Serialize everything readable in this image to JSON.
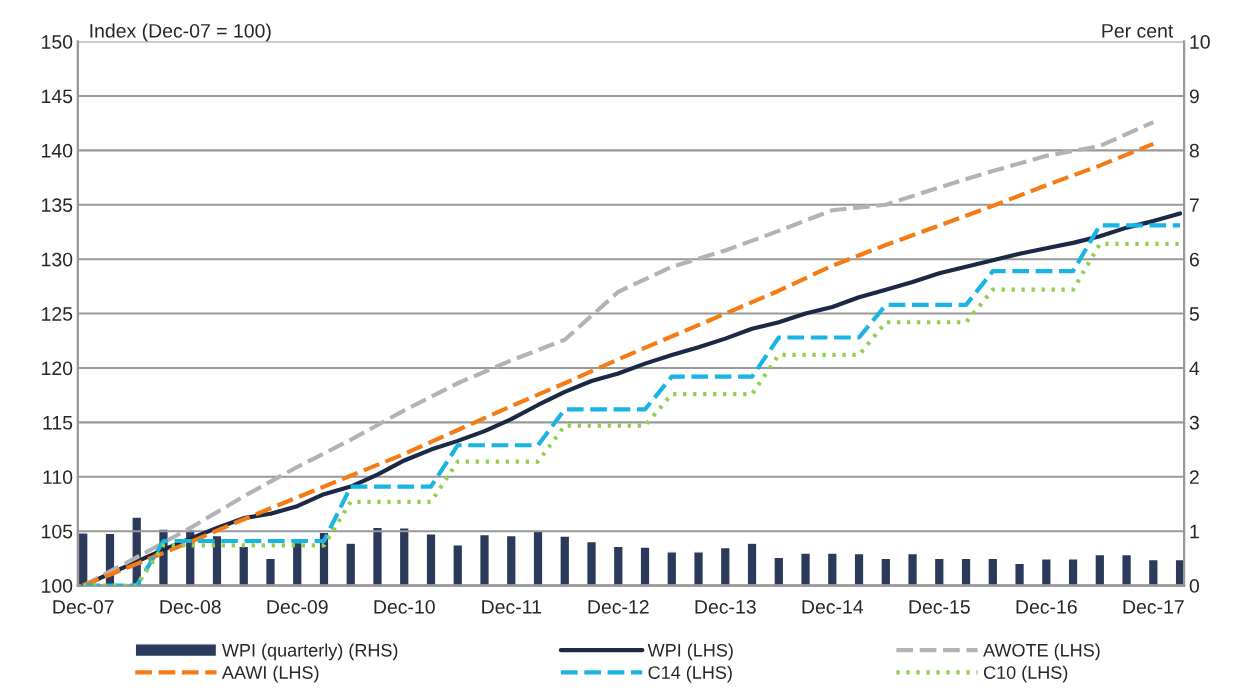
{
  "chart_data": {
    "type": "line",
    "ylabel": "Index (Dec-07 = 100)",
    "y2label": "Per cent",
    "categories": [
      "Dec-07",
      null,
      null,
      null,
      "Dec-08",
      null,
      null,
      null,
      "Dec-09",
      null,
      null,
      null,
      "Dec-10",
      null,
      null,
      null,
      "Dec-11",
      null,
      null,
      null,
      "Dec-12",
      null,
      null,
      null,
      "Dec-13",
      null,
      null,
      null,
      "Dec-14",
      null,
      null,
      null,
      "Dec-15",
      null,
      null,
      null,
      "Dec-16",
      null,
      null,
      null,
      "Dec-17",
      null
    ],
    "ylim": [
      100,
      150
    ],
    "yticks": [
      100,
      105,
      110,
      115,
      120,
      125,
      130,
      135,
      140,
      145,
      150
    ],
    "y2lim": [
      0,
      10
    ],
    "y2ticks": [
      0,
      1,
      2,
      3,
      4,
      5,
      6,
      7,
      8,
      9,
      10
    ],
    "grid": "y",
    "legend": "bottom",
    "series": [
      {
        "name": "WPI (quarterly) (RHS)",
        "type": "bar",
        "axis": "y2",
        "color": "#2b3a5a",
        "values": [
          0.97,
          0.96,
          1.26,
          1.04,
          1.03,
          0.92,
          0.72,
          0.5,
          0.79,
          0.98,
          0.78,
          1.07,
          1.06,
          0.95,
          0.75,
          0.94,
          0.92,
          1.01,
          0.91,
          0.81,
          0.72,
          0.71,
          0.62,
          0.62,
          0.7,
          0.78,
          0.52,
          0.6,
          0.6,
          0.59,
          0.5,
          0.59,
          0.5,
          0.5,
          0.5,
          0.41,
          0.49,
          0.49,
          0.57,
          0.57,
          0.48,
          0.48
        ]
      },
      {
        "name": "WPI (LHS)",
        "line_style": "solid",
        "color": "#1b2945",
        "values": [
          100,
          101.1,
          102.2,
          103.3,
          104.3,
          105.3,
          106.2,
          106.6,
          107.3,
          108.4,
          109.1,
          110.2,
          111.5,
          112.5,
          113.3,
          114.2,
          115.3,
          116.6,
          117.8,
          118.8,
          119.5,
          120.4,
          121.2,
          121.9,
          122.7,
          123.6,
          124.2,
          125.0,
          125.6,
          126.5,
          127.2,
          127.9,
          128.7,
          129.3,
          129.9,
          130.5,
          131.0,
          131.5,
          132.1,
          132.9,
          133.5,
          134.2
        ]
      },
      {
        "name": "AWOTE (LHS)",
        "line_style": "dashed",
        "color": "#b3b3b3",
        "values": [
          100,
          null,
          102.6,
          null,
          105.3,
          null,
          108.2,
          null,
          110.9,
          null,
          113.4,
          null,
          116.1,
          null,
          118.6,
          null,
          120.7,
          null,
          122.6,
          null,
          127.0,
          null,
          129.3,
          null,
          130.8,
          null,
          132.6,
          null,
          134.5,
          null,
          135.0,
          null,
          136.6,
          null,
          138.1,
          null,
          139.5,
          null,
          140.4,
          null,
          142.6,
          null
        ]
      },
      {
        "name": "AAWI (LHS)",
        "line_style": "dashed",
        "color": "#f57c14",
        "values": [
          100,
          null,
          102.0,
          null,
          104.0,
          null,
          106.1,
          null,
          108.1,
          null,
          110.1,
          null,
          112.1,
          null,
          114.3,
          null,
          116.5,
          null,
          118.6,
          null,
          120.8,
          null,
          122.9,
          null,
          125.0,
          null,
          127.1,
          null,
          129.4,
          null,
          131.3,
          null,
          133.1,
          null,
          134.9,
          null,
          136.8,
          null,
          138.6,
          null,
          140.6,
          null
        ]
      },
      {
        "name": "C14 (LHS)",
        "line_style": "dashed",
        "color": "#18b4e3",
        "values": [
          100,
          100,
          100,
          104.1,
          104.1,
          104.1,
          104.1,
          104.1,
          104.1,
          104.1,
          109.1,
          109.1,
          109.1,
          109.1,
          112.9,
          112.9,
          112.9,
          112.9,
          116.2,
          116.2,
          116.2,
          116.2,
          119.2,
          119.2,
          119.2,
          119.2,
          122.8,
          122.8,
          122.8,
          122.8,
          125.8,
          125.8,
          125.8,
          125.8,
          128.9,
          128.9,
          128.9,
          128.9,
          133.1,
          133.1,
          133.1,
          133.1
        ]
      },
      {
        "name": "C10 (LHS)",
        "line_style": "dotted",
        "color": "#92d050",
        "values": [
          100,
          100,
          100,
          103.7,
          103.7,
          103.7,
          103.7,
          103.7,
          103.7,
          103.7,
          107.7,
          107.7,
          107.7,
          107.7,
          111.4,
          111.4,
          111.4,
          111.4,
          114.7,
          114.7,
          114.7,
          114.7,
          117.6,
          117.6,
          117.6,
          117.6,
          121.2,
          121.2,
          121.2,
          121.2,
          124.2,
          124.2,
          124.2,
          124.2,
          127.2,
          127.2,
          127.2,
          127.2,
          131.4,
          131.4,
          131.4,
          131.4
        ]
      }
    ]
  }
}
